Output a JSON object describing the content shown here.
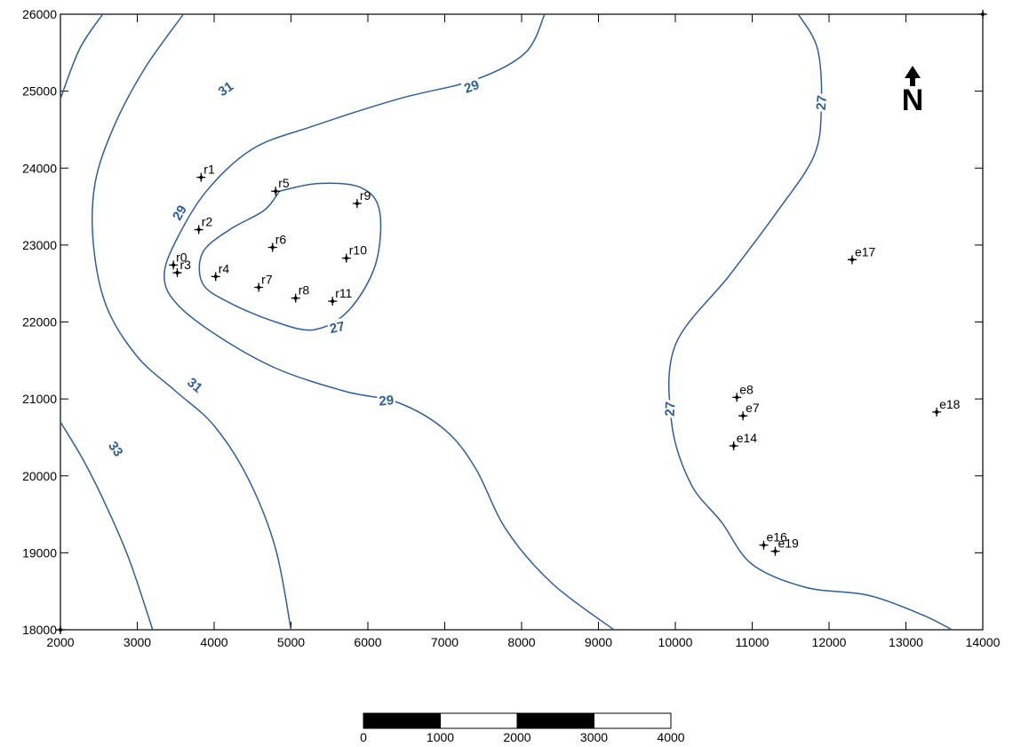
{
  "chart_data": {
    "type": "contour",
    "xlim": [
      2000,
      14000
    ],
    "ylim": [
      18000,
      26000
    ],
    "x_ticks": [
      2000,
      3000,
      4000,
      5000,
      6000,
      7000,
      8000,
      9000,
      10000,
      11000,
      12000,
      13000,
      14000
    ],
    "y_ticks": [
      18000,
      19000,
      20000,
      21000,
      22000,
      23000,
      24000,
      25000,
      26000
    ],
    "x_tick_labels": [
      "2000",
      "3000",
      "4000",
      "5000",
      "6000",
      "7000",
      "8000",
      "9000",
      "10000",
      "11000",
      "12000",
      "13000",
      "14000"
    ],
    "y_tick_labels": [
      "18000",
      "19000",
      "20000",
      "21000",
      "22000",
      "23000",
      "24000",
      "25000",
      "26000"
    ],
    "contour_color": "#2f5f96",
    "contours": [
      {
        "level": "33",
        "points": [
          [
            2000,
            20700
          ],
          [
            2300,
            20200
          ],
          [
            2600,
            19600
          ],
          [
            2900,
            18900
          ],
          [
            3200,
            18000
          ]
        ]
      },
      {
        "level": "31",
        "points": [
          [
            2000,
            24900
          ],
          [
            2250,
            25550
          ],
          [
            2550,
            26000
          ]
        ]
      },
      {
        "level": "31",
        "points": [
          [
            3600,
            26000
          ],
          [
            3100,
            25300
          ],
          [
            2700,
            24550
          ],
          [
            2450,
            23800
          ],
          [
            2430,
            23000
          ],
          [
            2600,
            22200
          ],
          [
            3000,
            21550
          ],
          [
            3500,
            21100
          ],
          [
            4000,
            20650
          ],
          [
            4450,
            19950
          ],
          [
            4800,
            19050
          ],
          [
            5000,
            18000
          ]
        ]
      },
      {
        "level": "29",
        "points": [
          [
            8300,
            26000
          ],
          [
            8050,
            25500
          ],
          [
            7400,
            25150
          ],
          [
            6400,
            24900
          ],
          [
            5300,
            24550
          ],
          [
            4500,
            24250
          ],
          [
            3900,
            23700
          ],
          [
            3500,
            23050
          ],
          [
            3350,
            22600
          ],
          [
            3500,
            22250
          ],
          [
            4000,
            21850
          ],
          [
            4800,
            21400
          ],
          [
            5700,
            21100
          ],
          [
            6400,
            20950
          ],
          [
            7000,
            20600
          ],
          [
            7400,
            20100
          ],
          [
            7800,
            19300
          ],
          [
            8400,
            18600
          ],
          [
            9200,
            18000
          ]
        ]
      },
      {
        "level": "27",
        "points": [
          [
            4850,
            23700
          ],
          [
            5350,
            23800
          ],
          [
            5900,
            23750
          ],
          [
            6150,
            23450
          ],
          [
            6100,
            22750
          ],
          [
            5750,
            22150
          ],
          [
            5300,
            21900
          ],
          [
            4800,
            22000
          ],
          [
            4200,
            22250
          ],
          [
            3850,
            22500
          ],
          [
            3850,
            22900
          ],
          [
            4200,
            23200
          ],
          [
            4650,
            23450
          ],
          [
            4850,
            23700
          ]
        ]
      },
      {
        "level": "27",
        "points": [
          [
            11600,
            26000
          ],
          [
            11850,
            25550
          ],
          [
            11900,
            24800
          ],
          [
            11800,
            24150
          ],
          [
            11300,
            23400
          ],
          [
            10700,
            22600
          ],
          [
            10000,
            21700
          ],
          [
            9950,
            20700
          ],
          [
            10200,
            19900
          ],
          [
            10600,
            19400
          ],
          [
            11000,
            18850
          ],
          [
            11700,
            18550
          ],
          [
            12500,
            18450
          ],
          [
            13200,
            18200
          ],
          [
            13600,
            18000
          ]
        ]
      }
    ],
    "contour_labels": [
      {
        "text": "33",
        "x": 2720,
        "y": 20350,
        "angle": 55
      },
      {
        "text": "31",
        "x": 4150,
        "y": 25030,
        "angle": -35
      },
      {
        "text": "31",
        "x": 3750,
        "y": 21180,
        "angle": 40
      },
      {
        "text": "29",
        "x": 7350,
        "y": 25060,
        "angle": -20
      },
      {
        "text": "29",
        "x": 3550,
        "y": 23420,
        "angle": -60
      },
      {
        "text": "29",
        "x": 6240,
        "y": 20980,
        "angle": -5
      },
      {
        "text": "27",
        "x": 5600,
        "y": 21930,
        "angle": -12
      },
      {
        "text": "27",
        "x": 11900,
        "y": 24850,
        "angle": -85
      },
      {
        "text": "27",
        "x": 9930,
        "y": 20870,
        "angle": -88
      }
    ],
    "wells": [
      {
        "name": "r0",
        "x": 3470,
        "y": 22740
      },
      {
        "name": "r1",
        "x": 3830,
        "y": 23880
      },
      {
        "name": "r2",
        "x": 3800,
        "y": 23200
      },
      {
        "name": "r3",
        "x": 3520,
        "y": 22640
      },
      {
        "name": "r4",
        "x": 4020,
        "y": 22590
      },
      {
        "name": "r5",
        "x": 4800,
        "y": 23700
      },
      {
        "name": "r6",
        "x": 4760,
        "y": 22970
      },
      {
        "name": "r7",
        "x": 4580,
        "y": 22450
      },
      {
        "name": "r8",
        "x": 5060,
        "y": 22310
      },
      {
        "name": "r9",
        "x": 5860,
        "y": 23540
      },
      {
        "name": "r10",
        "x": 5720,
        "y": 22830
      },
      {
        "name": "r11",
        "x": 5540,
        "y": 22270
      },
      {
        "name": "e7",
        "x": 10880,
        "y": 20780
      },
      {
        "name": "e8",
        "x": 10800,
        "y": 21020
      },
      {
        "name": "e14",
        "x": 10760,
        "y": 20390
      },
      {
        "name": "e16",
        "x": 11150,
        "y": 19100
      },
      {
        "name": "e17",
        "x": 12300,
        "y": 22810
      },
      {
        "name": "e18",
        "x": 13400,
        "y": 20830
      },
      {
        "name": "e19",
        "x": 11300,
        "y": 19020
      }
    ],
    "corner_markers": [
      {
        "x": 2000,
        "y": 18000
      },
      {
        "x": 14000,
        "y": 26000
      }
    ]
  },
  "north_arrow": {
    "label": "N"
  },
  "scale_bar": {
    "labels": [
      "0",
      "1000",
      "2000",
      "3000",
      "4000"
    ],
    "segments": [
      "#000000",
      "#ffffff",
      "#000000",
      "#ffffff"
    ]
  }
}
